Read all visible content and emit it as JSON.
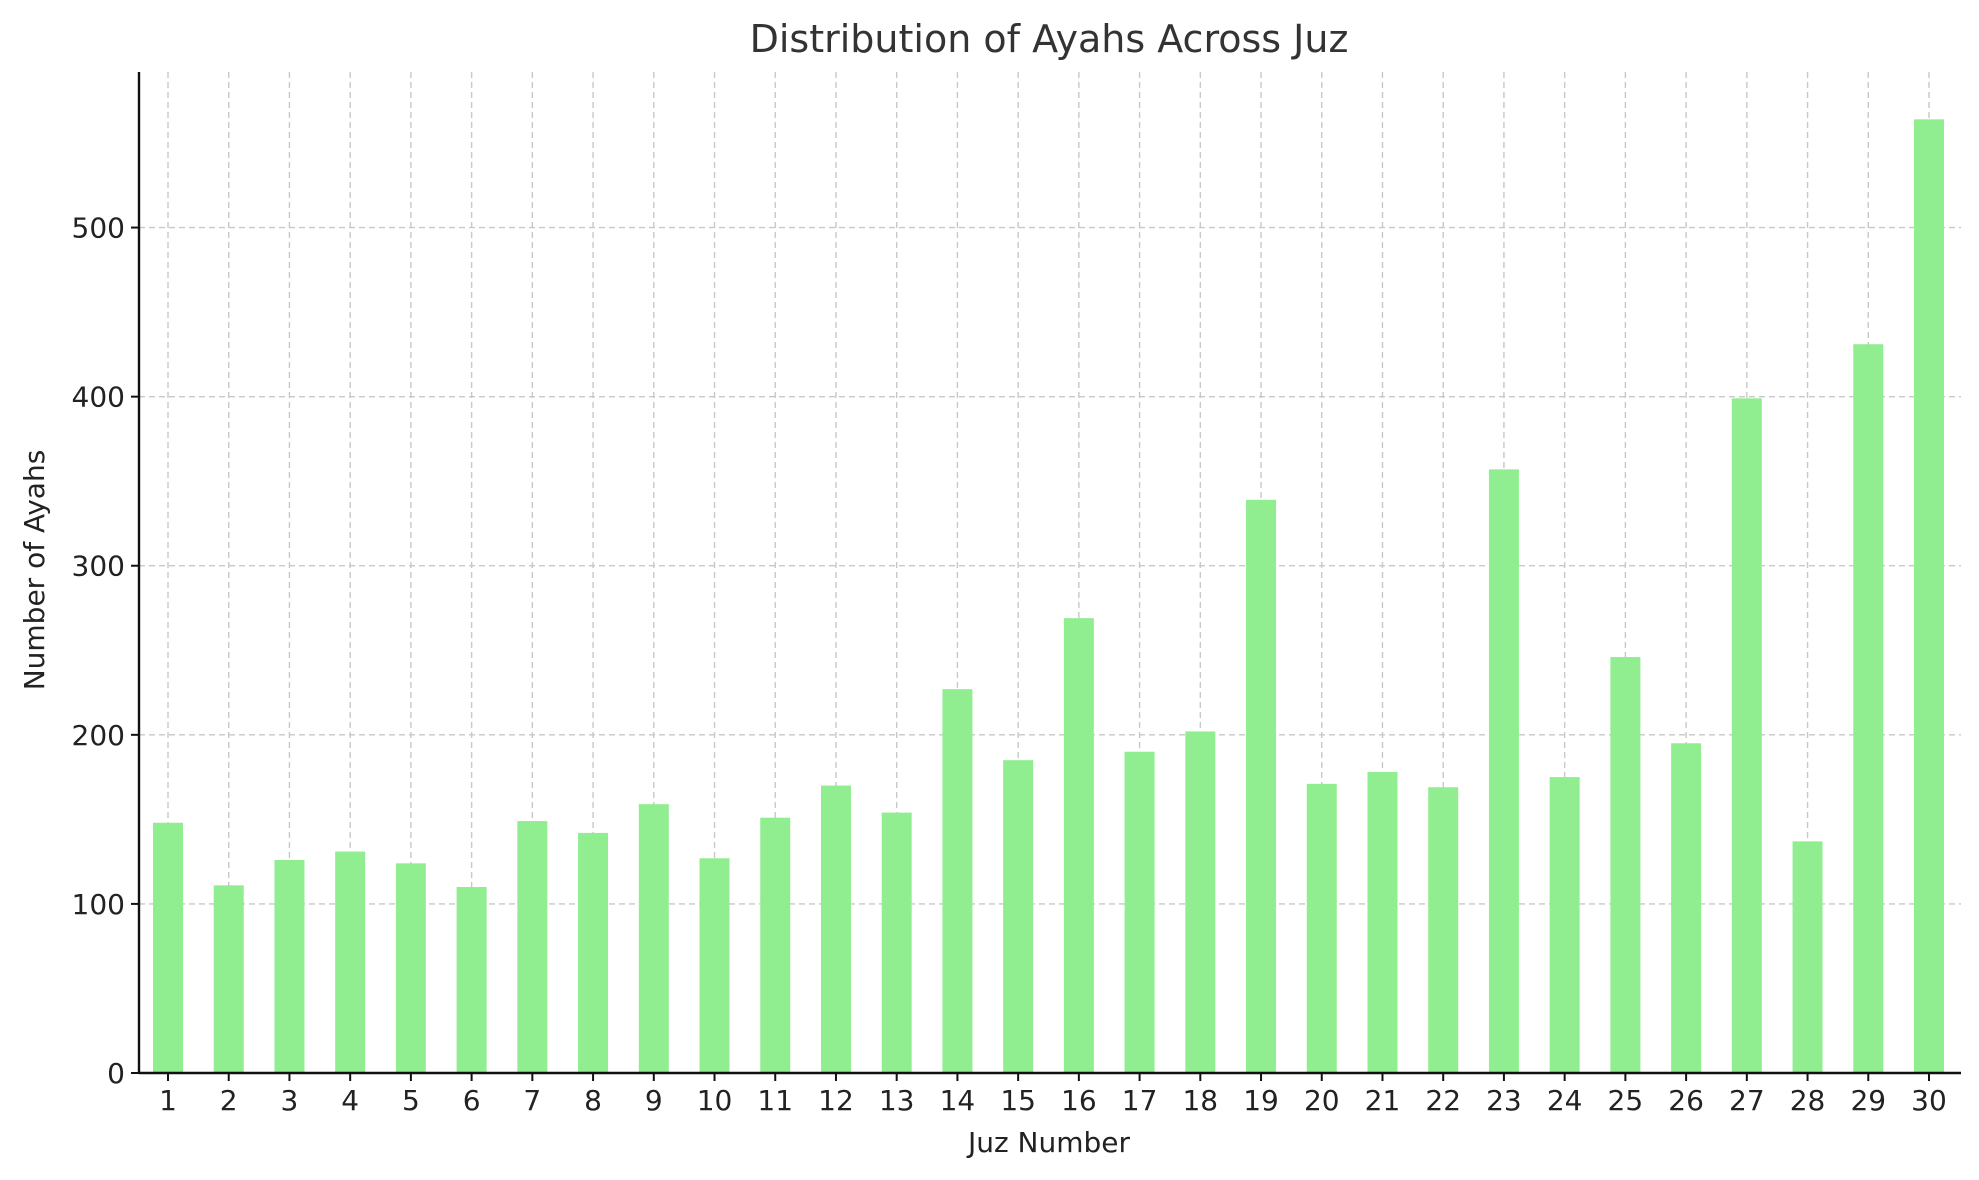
{
  "chart_data": {
    "type": "bar",
    "title": "Distribution of Ayahs Across Juz",
    "xlabel": "Juz Number",
    "ylabel": "Number of Ayahs",
    "categories": [
      "1",
      "2",
      "3",
      "4",
      "5",
      "6",
      "7",
      "8",
      "9",
      "10",
      "11",
      "12",
      "13",
      "14",
      "15",
      "16",
      "17",
      "18",
      "19",
      "20",
      "21",
      "22",
      "23",
      "24",
      "25",
      "26",
      "27",
      "28",
      "29",
      "30"
    ],
    "values": [
      148,
      111,
      126,
      131,
      124,
      110,
      149,
      142,
      159,
      127,
      151,
      170,
      154,
      227,
      185,
      269,
      190,
      202,
      339,
      171,
      178,
      169,
      357,
      175,
      246,
      195,
      399,
      137,
      431,
      564
    ],
    "yticks": [
      0,
      100,
      200,
      300,
      400,
      500
    ],
    "ylim": [
      0,
      592
    ],
    "grid": true,
    "bar_color": "#90ee90",
    "legend": "none"
  }
}
